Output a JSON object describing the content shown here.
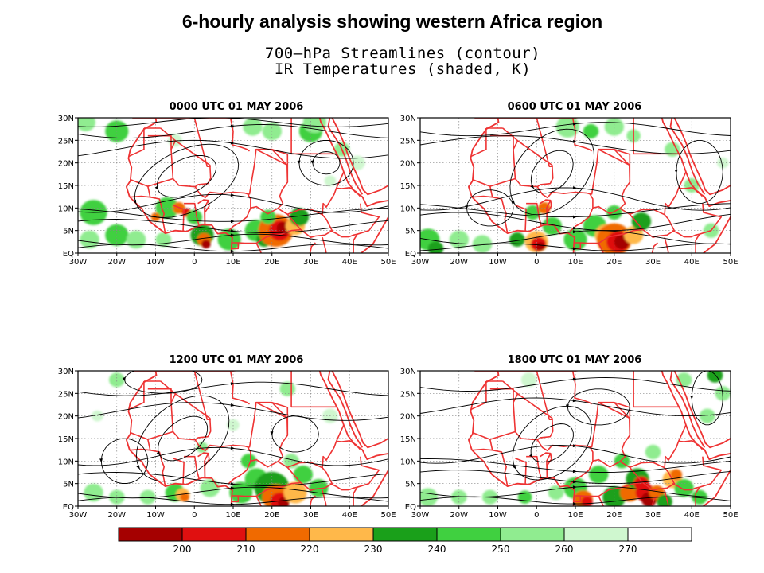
{
  "figure": {
    "main_title": "6-hourly analysis showing western Africa region",
    "subtitle_line1": "700—hPa Streamlines (contour)",
    "subtitle_line2": "IR Temperatures (shaded, K)"
  },
  "panels": [
    {
      "title": "0000 UTC 01 MAY 2006"
    },
    {
      "title": "0600 UTC 01 MAY 2006"
    },
    {
      "title": "1200 UTC 01 MAY 2006"
    },
    {
      "title": "1800 UTC 01 MAY 2006"
    }
  ],
  "axes": {
    "x_ticks": [
      "30W",
      "20W",
      "10W",
      "0",
      "10E",
      "20E",
      "30E",
      "40E",
      "50E"
    ],
    "y_ticks": [
      "EQ",
      "5N",
      "10N",
      "15N",
      "20N",
      "25N",
      "30N"
    ],
    "lon_range": [
      -30,
      50
    ],
    "lat_range": [
      0,
      30
    ]
  },
  "colorbar": {
    "labels": [
      "200",
      "210",
      "220",
      "230",
      "240",
      "250",
      "260",
      "270"
    ],
    "colors": [
      "#a50000",
      "#e01010",
      "#f06a00",
      "#ffb84a",
      "#1aa01a",
      "#40d040",
      "#90ec90",
      "#cff7cf",
      "#ffffff"
    ]
  },
  "colors": {
    "border": "#ee3333",
    "streamline": "#000000",
    "cold_core": "#a50000"
  }
}
